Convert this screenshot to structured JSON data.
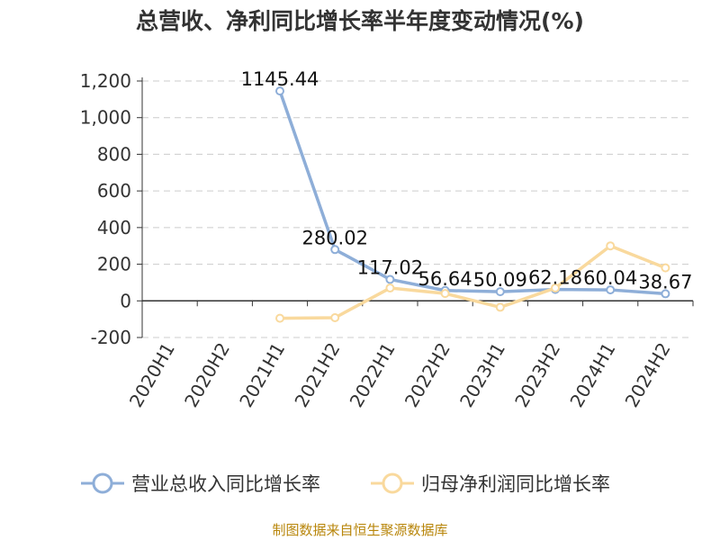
{
  "title": "总营收、净利同比增长率半年度变动情况(%)",
  "source": "制图数据来自恒生聚源数据库",
  "chart_data": {
    "type": "line",
    "title": "总营收、净利同比增长率半年度变动情况(%)",
    "categories": [
      "2020H1",
      "2020H2",
      "2021H1",
      "2021H2",
      "2022H1",
      "2022H2",
      "2023H1",
      "2023H2",
      "2024H1",
      "2024H2"
    ],
    "ylim": [
      -200,
      1200
    ],
    "yticks": [
      -200,
      0,
      200,
      400,
      600,
      800,
      1000,
      1200
    ],
    "ytick_labels": [
      "-200",
      "0",
      "200",
      "400",
      "600",
      "800",
      "1,000",
      "1,200"
    ],
    "grid": true,
    "legend_position": "bottom",
    "series": [
      {
        "name": "营业总收入同比增长率",
        "color": "#8eaed8",
        "values": [
          null,
          null,
          1145.44,
          280.02,
          117.02,
          56.64,
          50.09,
          62.18,
          60.04,
          38.67
        ],
        "labels": [
          "",
          "",
          "1145.44",
          "280.02",
          "117.02",
          "56.64",
          "50.09",
          "62.18",
          "60.04",
          "38.67"
        ]
      },
      {
        "name": "归母净利润同比增长率",
        "color": "#f9d99d",
        "values": [
          null,
          null,
          -95,
          -92,
          70,
          40,
          -35,
          70,
          300,
          180
        ],
        "labels": []
      }
    ]
  }
}
